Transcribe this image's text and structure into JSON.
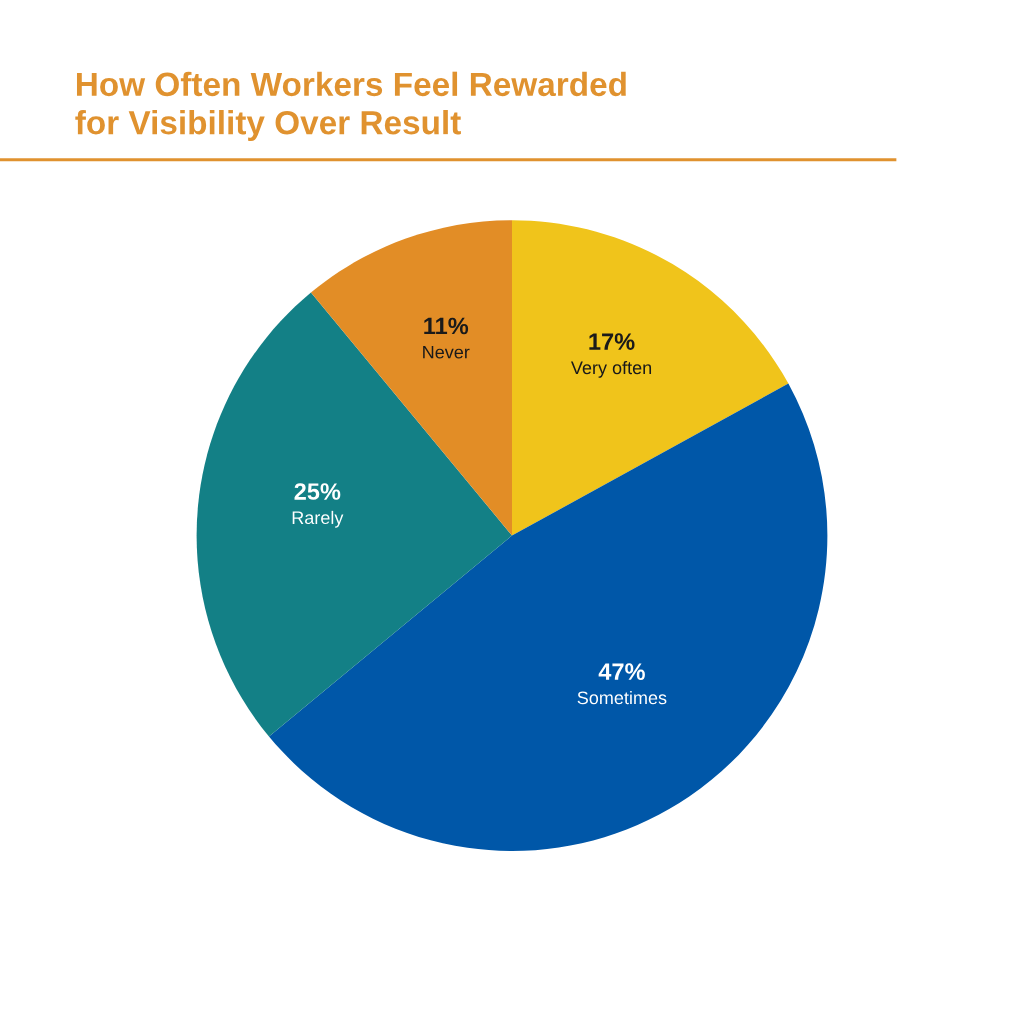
{
  "chart_data": {
    "type": "pie",
    "title": "How Often Workers Feel Rewarded\nfor Visibility Over Result",
    "categories": [
      "Very often",
      "Sometimes",
      "Rarely",
      "Never"
    ],
    "values": [
      17,
      47,
      25,
      11
    ],
    "colors": [
      "#f0c41b",
      "#0057a8",
      "#138086",
      "#e28d26"
    ],
    "value_labels": [
      "17%",
      "47%",
      "25%",
      "11%"
    ],
    "legend": false
  }
}
